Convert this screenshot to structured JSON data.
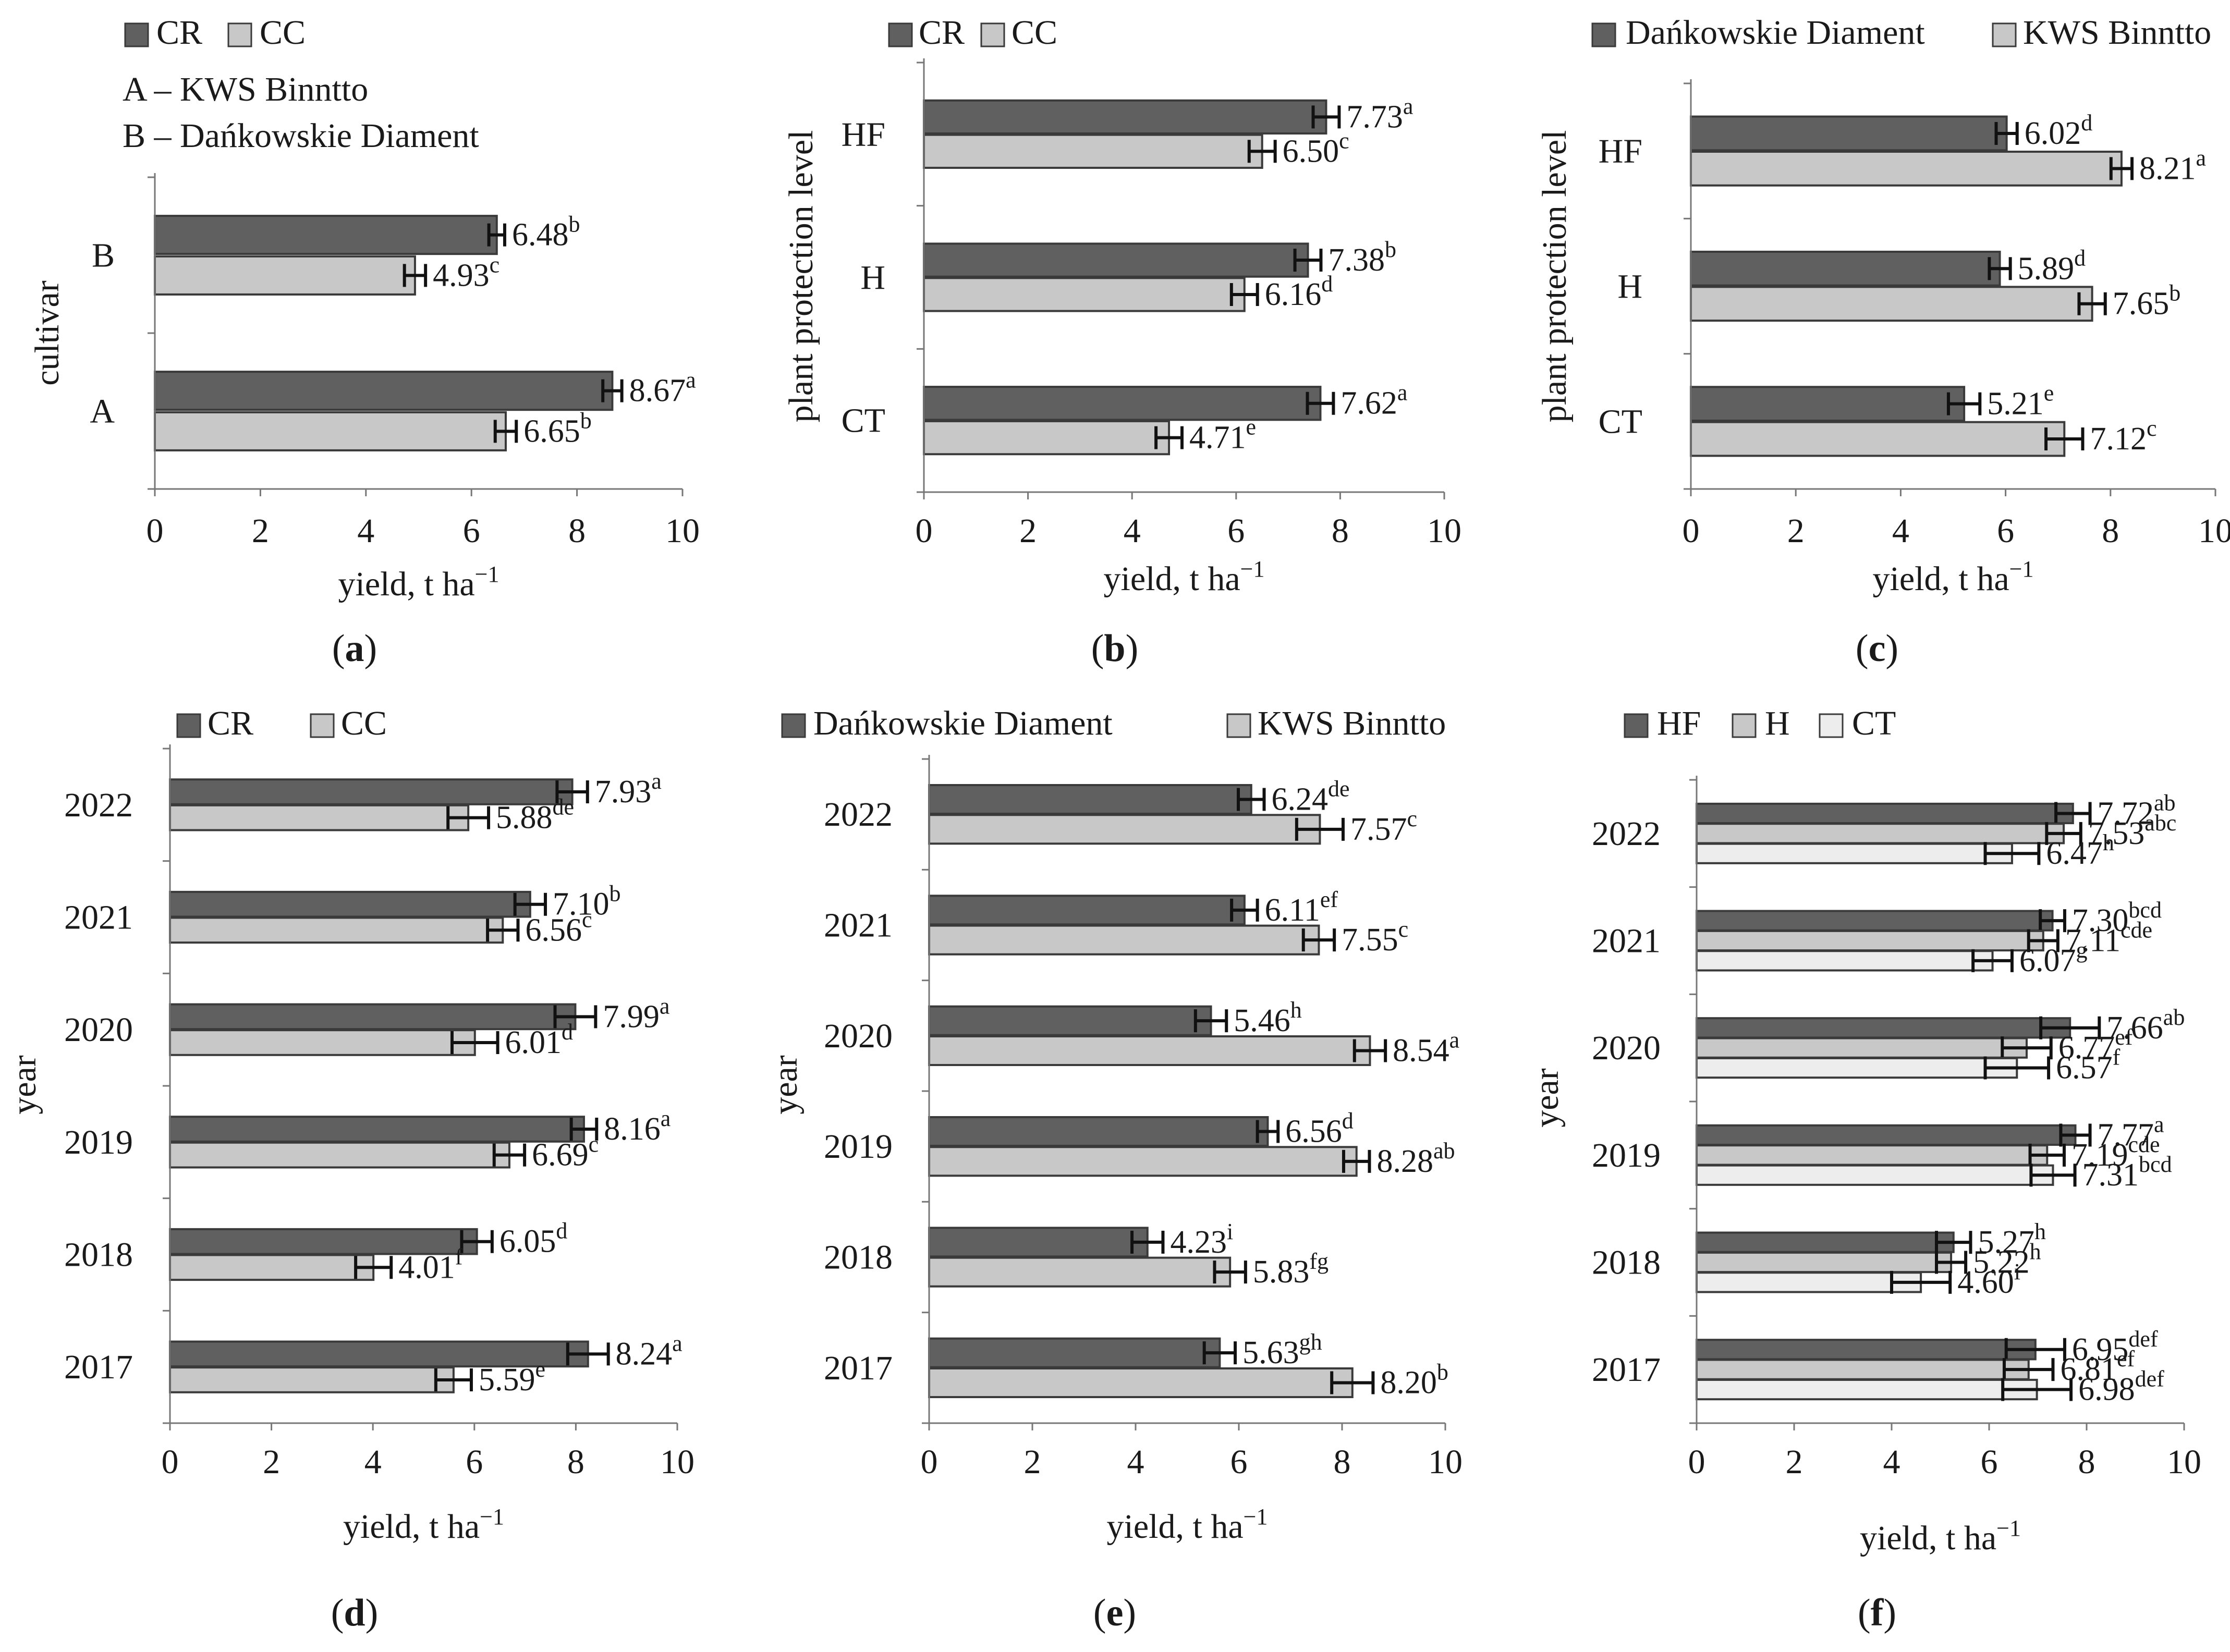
{
  "colors": {
    "dark": "#606060",
    "mid": "#c8c8c8",
    "light": "#ededed",
    "stroke": "#3a3a3a"
  },
  "chart_data": [
    {
      "type": "bar",
      "orientation": "horizontal",
      "panel_label": "a",
      "bold": "a",
      "categories": [
        "B",
        "A"
      ],
      "series": [
        {
          "name": "CR",
          "color": "dark",
          "values": [
            6.48,
            8.67
          ],
          "errors": [
            0.15,
            0.18
          ],
          "letters": [
            "b",
            "a"
          ],
          "labels": [
            "6.48",
            "8.67"
          ]
        },
        {
          "name": "CC",
          "color": "mid",
          "values": [
            4.93,
            6.65
          ],
          "errors": [
            0.2,
            0.2
          ],
          "letters": [
            "c",
            "b"
          ],
          "labels": [
            "4.93",
            "6.65"
          ]
        }
      ],
      "xlabel": "yield, t ha",
      "xlabel_sup": "−1",
      "ylabel": "cultivar",
      "xlim": [
        0,
        10
      ],
      "xticks": [
        "0",
        "2",
        "4",
        "6",
        "8",
        "10"
      ],
      "legend": [
        "CR",
        "CC"
      ],
      "notes": [
        "A – KWS Binntto",
        "B – Dańkowskie Diament"
      ]
    },
    {
      "type": "bar",
      "orientation": "horizontal",
      "panel_label": "b",
      "bold": "b",
      "categories": [
        "HF",
        "H",
        "CT"
      ],
      "series": [
        {
          "name": "CR",
          "color": "dark",
          "values": [
            7.73,
            7.38,
            7.62
          ],
          "errors": [
            0.25,
            0.25,
            0.25
          ],
          "letters": [
            "a",
            "b",
            "a"
          ],
          "labels": [
            "7.73",
            "7.38",
            "7.62"
          ]
        },
        {
          "name": "CC",
          "color": "mid",
          "values": [
            6.5,
            6.16,
            4.71
          ],
          "errors": [
            0.25,
            0.25,
            0.25
          ],
          "letters": [
            "c",
            "d",
            "e"
          ],
          "labels": [
            "6.50",
            "6.16",
            "4.71"
          ]
        }
      ],
      "xlabel": "yield, t ha",
      "xlabel_sup": "−1",
      "ylabel": "plant protection level",
      "xlim": [
        0,
        10
      ],
      "xticks": [
        "0",
        "2",
        "4",
        "6",
        "8",
        "10"
      ],
      "legend": [
        "CR",
        "CC"
      ]
    },
    {
      "type": "bar",
      "orientation": "horizontal",
      "panel_label": "c",
      "bold": "c",
      "categories": [
        "HF",
        "H",
        "CT"
      ],
      "series": [
        {
          "name": "Dańkowskie Diament",
          "color": "dark",
          "values": [
            6.02,
            5.89,
            5.21
          ],
          "errors": [
            0.2,
            0.2,
            0.3
          ],
          "letters": [
            "d",
            "d",
            "e"
          ],
          "labels": [
            "6.02",
            "5.89",
            "5.21"
          ]
        },
        {
          "name": "KWS Binntto",
          "color": "mid",
          "values": [
            8.21,
            7.65,
            7.12
          ],
          "errors": [
            0.2,
            0.25,
            0.35
          ],
          "letters": [
            "a",
            "b",
            "c"
          ],
          "labels": [
            "8.21",
            "7.65",
            "7.12"
          ]
        }
      ],
      "xlabel": "yield, t ha",
      "xlabel_sup": "−1",
      "ylabel": "plant protection level",
      "xlim": [
        0,
        10
      ],
      "xticks": [
        "0",
        "2",
        "4",
        "6",
        "8",
        "10"
      ],
      "legend": [
        "Dańkowskie Diament",
        "KWS Binntto"
      ]
    },
    {
      "type": "bar",
      "orientation": "horizontal",
      "panel_label": "d",
      "bold": "d",
      "categories": [
        "2022",
        "2021",
        "2020",
        "2019",
        "2018",
        "2017"
      ],
      "series": [
        {
          "name": "CR",
          "color": "dark",
          "values": [
            7.93,
            7.1,
            7.99,
            8.16,
            6.05,
            8.24
          ],
          "errors": [
            0.3,
            0.3,
            0.4,
            0.25,
            0.3,
            0.4
          ],
          "letters": [
            "a",
            "b",
            "a",
            "a",
            "d",
            "a"
          ],
          "labels": [
            "7.93",
            "7.10",
            "7.99",
            "8.16",
            "6.05",
            "8.24"
          ]
        },
        {
          "name": "CC",
          "color": "mid",
          "values": [
            5.88,
            6.56,
            6.01,
            6.69,
            4.01,
            5.59
          ],
          "errors": [
            0.4,
            0.3,
            0.45,
            0.3,
            0.35,
            0.35
          ],
          "letters": [
            "de",
            "c",
            "d",
            "c",
            "f",
            "e"
          ],
          "labels": [
            "5.88",
            "6.56",
            "6.01",
            "6.69",
            "4.01",
            "5.59"
          ]
        }
      ],
      "xlabel": "yield, t ha",
      "xlabel_sup": "−1",
      "ylabel": "year",
      "xlim": [
        0,
        10
      ],
      "xticks": [
        "0",
        "2",
        "4",
        "6",
        "8",
        "10"
      ],
      "legend": [
        "CR",
        "CC"
      ]
    },
    {
      "type": "bar",
      "orientation": "horizontal",
      "panel_label": "e",
      "bold": "e",
      "categories": [
        "2022",
        "2021",
        "2020",
        "2019",
        "2018",
        "2017"
      ],
      "series": [
        {
          "name": "Dańkowskie Diament",
          "color": "dark",
          "values": [
            6.24,
            6.11,
            5.46,
            6.56,
            4.23,
            5.63
          ],
          "errors": [
            0.25,
            0.25,
            0.3,
            0.2,
            0.3,
            0.3
          ],
          "letters": [
            "de",
            "ef",
            "h",
            "d",
            "i",
            "gh"
          ],
          "labels": [
            "6.24",
            "6.11",
            "5.46",
            "6.56",
            "4.23",
            "5.63"
          ]
        },
        {
          "name": "KWS Binntto",
          "color": "mid",
          "values": [
            7.57,
            7.55,
            8.54,
            8.28,
            5.83,
            8.2
          ],
          "errors": [
            0.45,
            0.3,
            0.3,
            0.25,
            0.3,
            0.4
          ],
          "letters": [
            "c",
            "c",
            "a",
            "ab",
            "fg",
            "b"
          ],
          "labels": [
            "7.57",
            "7.55",
            "8.54",
            "8.28",
            "5.83",
            "8.20"
          ]
        }
      ],
      "xlabel": "yield, t ha",
      "xlabel_sup": "−1",
      "ylabel": "year",
      "xlim": [
        0,
        10
      ],
      "xticks": [
        "0",
        "2",
        "4",
        "6",
        "8",
        "10"
      ],
      "legend": [
        "Dańkowskie Diament",
        "KWS Binntto"
      ]
    },
    {
      "type": "bar",
      "orientation": "horizontal",
      "panel_label": "f",
      "bold": "f",
      "categories": [
        "2022",
        "2021",
        "2020",
        "2019",
        "2018",
        "2017"
      ],
      "series": [
        {
          "name": "HF",
          "color": "dark",
          "values": [
            7.72,
            7.3,
            7.66,
            7.77,
            5.27,
            6.95
          ],
          "errors": [
            0.35,
            0.25,
            0.6,
            0.3,
            0.35,
            0.6
          ],
          "letters": [
            "ab",
            "bcd",
            "ab",
            "a",
            "h",
            "def"
          ],
          "labels": [
            "7.72",
            "7.30",
            "7.66",
            "7.77",
            "5.27",
            "6.95"
          ]
        },
        {
          "name": "H",
          "color": "mid",
          "values": [
            7.53,
            7.11,
            6.77,
            7.19,
            5.22,
            6.81
          ],
          "errors": [
            0.35,
            0.3,
            0.5,
            0.35,
            0.3,
            0.5
          ],
          "letters": [
            "abc",
            "cde",
            "ef",
            "cde",
            "h",
            "ef"
          ],
          "labels": [
            "7.53",
            "7.11",
            "6.77",
            "7.19",
            "5.22",
            "6.81"
          ]
        },
        {
          "name": "CT",
          "color": "light",
          "values": [
            6.47,
            6.07,
            6.57,
            7.31,
            4.6,
            6.98
          ],
          "errors": [
            0.55,
            0.4,
            0.65,
            0.45,
            0.6,
            0.7
          ],
          "letters": [
            "h",
            "g",
            "f",
            "bcd",
            "i",
            "def"
          ],
          "labels": [
            "6.47",
            "6.07",
            "6.57",
            "7.31",
            "4.60",
            "6.98"
          ]
        }
      ],
      "xlabel": "yield, t ha",
      "xlabel_sup": "−1",
      "ylabel": "year",
      "xlim": [
        0,
        10
      ],
      "xticks": [
        "0",
        "2",
        "4",
        "6",
        "8",
        "10"
      ],
      "legend": [
        "HF",
        "H",
        "CT"
      ]
    }
  ]
}
